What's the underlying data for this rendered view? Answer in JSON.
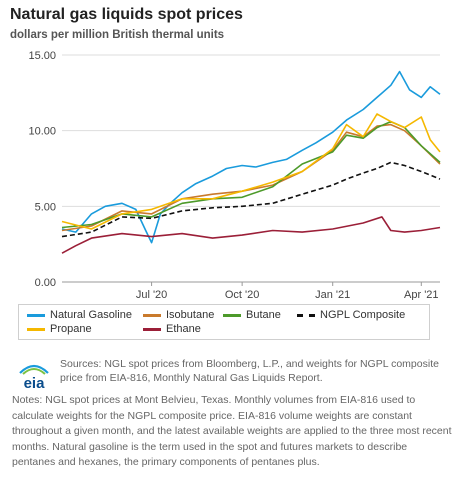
{
  "header": {
    "title": "Natural gas liquids spot prices",
    "subtitle": "dollars per million British thermal units"
  },
  "chart_data": {
    "type": "line",
    "x_range": [
      "2020-04-01",
      "2021-04-20"
    ],
    "ylim": [
      0,
      15
    ],
    "y_ticks": [
      "0.00",
      "5.00",
      "10.00",
      "15.00"
    ],
    "x_ticks": [
      {
        "label": "Jul '20",
        "date": "2020-07-01"
      },
      {
        "label": "Oct '20",
        "date": "2020-10-01"
      },
      {
        "label": "Jan '21",
        "date": "2021-01-01"
      },
      {
        "label": "Apr '21",
        "date": "2021-04-01"
      }
    ],
    "grid": "horizontal",
    "legend_position": "bottom",
    "series": [
      {
        "name": "Natural Gasoline",
        "color": "#1a9bdc",
        "dash": false,
        "points": [
          [
            "2020-04-01",
            3.5
          ],
          [
            "2020-04-15",
            3.3
          ],
          [
            "2020-05-01",
            4.5
          ],
          [
            "2020-05-15",
            5.0
          ],
          [
            "2020-06-01",
            5.2
          ],
          [
            "2020-06-15",
            4.8
          ],
          [
            "2020-06-25",
            3.4
          ],
          [
            "2020-07-01",
            2.6
          ],
          [
            "2020-07-10",
            4.5
          ],
          [
            "2020-07-20",
            5.2
          ],
          [
            "2020-08-01",
            5.9
          ],
          [
            "2020-08-15",
            6.5
          ],
          [
            "2020-09-01",
            7.0
          ],
          [
            "2020-09-15",
            7.5
          ],
          [
            "2020-10-01",
            7.7
          ],
          [
            "2020-10-15",
            7.6
          ],
          [
            "2020-11-01",
            7.9
          ],
          [
            "2020-11-15",
            8.1
          ],
          [
            "2020-12-01",
            8.7
          ],
          [
            "2020-12-15",
            9.2
          ],
          [
            "2021-01-01",
            9.9
          ],
          [
            "2021-01-15",
            10.7
          ],
          [
            "2021-02-01",
            11.4
          ],
          [
            "2021-02-15",
            12.2
          ],
          [
            "2021-03-01",
            13.0
          ],
          [
            "2021-03-10",
            13.9
          ],
          [
            "2021-03-20",
            12.7
          ],
          [
            "2021-04-01",
            12.2
          ],
          [
            "2021-04-10",
            12.9
          ],
          [
            "2021-04-20",
            12.4
          ]
        ]
      },
      {
        "name": "Isobutane",
        "color": "#c97a2c",
        "dash": false,
        "points": [
          [
            "2020-04-01",
            3.4
          ],
          [
            "2020-05-01",
            3.7
          ],
          [
            "2020-06-01",
            4.7
          ],
          [
            "2020-07-01",
            4.5
          ],
          [
            "2020-08-01",
            5.5
          ],
          [
            "2020-09-01",
            5.8
          ],
          [
            "2020-10-01",
            6.0
          ],
          [
            "2020-11-01",
            6.4
          ],
          [
            "2020-12-01",
            7.3
          ],
          [
            "2021-01-01",
            8.7
          ],
          [
            "2021-01-15",
            9.9
          ],
          [
            "2021-02-01",
            9.6
          ],
          [
            "2021-02-15",
            10.3
          ],
          [
            "2021-03-01",
            10.4
          ],
          [
            "2021-03-15",
            10.0
          ],
          [
            "2021-04-01",
            9.0
          ],
          [
            "2021-04-20",
            7.8
          ]
        ]
      },
      {
        "name": "Butane",
        "color": "#4d9a2a",
        "dash": false,
        "points": [
          [
            "2020-04-01",
            3.6
          ],
          [
            "2020-05-01",
            3.8
          ],
          [
            "2020-06-01",
            4.5
          ],
          [
            "2020-07-01",
            4.3
          ],
          [
            "2020-08-01",
            5.2
          ],
          [
            "2020-09-01",
            5.5
          ],
          [
            "2020-10-01",
            5.6
          ],
          [
            "2020-11-01",
            6.3
          ],
          [
            "2020-12-01",
            7.8
          ],
          [
            "2021-01-01",
            8.6
          ],
          [
            "2021-01-15",
            9.7
          ],
          [
            "2021-02-01",
            9.5
          ],
          [
            "2021-02-15",
            10.2
          ],
          [
            "2021-03-01",
            10.6
          ],
          [
            "2021-03-15",
            10.2
          ],
          [
            "2021-04-01",
            9.0
          ],
          [
            "2021-04-20",
            7.9
          ]
        ]
      },
      {
        "name": "NGPL Composite",
        "color": "#111111",
        "dash": true,
        "points": [
          [
            "2020-04-01",
            3.0
          ],
          [
            "2020-05-01",
            3.3
          ],
          [
            "2020-06-01",
            4.3
          ],
          [
            "2020-07-01",
            4.2
          ],
          [
            "2020-08-01",
            4.7
          ],
          [
            "2020-09-01",
            4.9
          ],
          [
            "2020-10-01",
            5.0
          ],
          [
            "2020-11-01",
            5.2
          ],
          [
            "2020-12-01",
            5.8
          ],
          [
            "2021-01-01",
            6.4
          ],
          [
            "2021-01-15",
            6.8
          ],
          [
            "2021-02-01",
            7.2
          ],
          [
            "2021-02-15",
            7.5
          ],
          [
            "2021-03-01",
            7.9
          ],
          [
            "2021-03-15",
            7.7
          ],
          [
            "2021-04-01",
            7.3
          ],
          [
            "2021-04-20",
            6.8
          ]
        ]
      },
      {
        "name": "Propane",
        "color": "#f5b800",
        "dash": false,
        "points": [
          [
            "2020-04-01",
            4.0
          ],
          [
            "2020-05-01",
            3.5
          ],
          [
            "2020-06-01",
            4.5
          ],
          [
            "2020-07-01",
            4.8
          ],
          [
            "2020-08-01",
            5.5
          ],
          [
            "2020-09-01",
            5.5
          ],
          [
            "2020-10-01",
            6.0
          ],
          [
            "2020-11-01",
            6.6
          ],
          [
            "2020-12-01",
            7.3
          ],
          [
            "2021-01-01",
            8.8
          ],
          [
            "2021-01-15",
            10.4
          ],
          [
            "2021-02-01",
            9.6
          ],
          [
            "2021-02-15",
            11.1
          ],
          [
            "2021-03-01",
            10.6
          ],
          [
            "2021-03-15",
            10.2
          ],
          [
            "2021-04-01",
            10.9
          ],
          [
            "2021-04-10",
            9.4
          ],
          [
            "2021-04-20",
            8.6
          ]
        ]
      },
      {
        "name": "Ethane",
        "color": "#9b1f38",
        "dash": false,
        "points": [
          [
            "2020-04-01",
            1.9
          ],
          [
            "2020-04-15",
            2.4
          ],
          [
            "2020-05-01",
            2.9
          ],
          [
            "2020-06-01",
            3.2
          ],
          [
            "2020-07-01",
            3.0
          ],
          [
            "2020-08-01",
            3.2
          ],
          [
            "2020-09-01",
            2.9
          ],
          [
            "2020-10-01",
            3.1
          ],
          [
            "2020-11-01",
            3.4
          ],
          [
            "2020-12-01",
            3.3
          ],
          [
            "2021-01-01",
            3.5
          ],
          [
            "2021-02-01",
            3.9
          ],
          [
            "2021-02-20",
            4.3
          ],
          [
            "2021-03-01",
            3.4
          ],
          [
            "2021-03-15",
            3.3
          ],
          [
            "2021-04-01",
            3.4
          ],
          [
            "2021-04-20",
            3.6
          ]
        ]
      }
    ]
  },
  "legend": {
    "items": [
      {
        "label": "Natural Gasoline",
        "color": "#1a9bdc",
        "dash": false
      },
      {
        "label": "Isobutane",
        "color": "#c97a2c",
        "dash": false
      },
      {
        "label": "Butane",
        "color": "#4d9a2a",
        "dash": false
      },
      {
        "label": "NGPL Composite",
        "color": "#111111",
        "dash": true
      },
      {
        "label": "Propane",
        "color": "#f5b800",
        "dash": false
      },
      {
        "label": "Ethane",
        "color": "#9b1f38",
        "dash": false
      }
    ]
  },
  "footer": {
    "logo_text": "eia",
    "sources": "Sources: NGL spot prices from Bloomberg, L.P., and weights for NGPL composite price from EIA-816, Monthly Natural Gas Liquids Report.",
    "notes": "Notes: NGL spot prices at Mont Belvieu, Texas. Monthly volumes from EIA-816 used to calculate weights for the NGPL composite price. EIA-816 volume weights are constant throughout a given month, and the latest available weights are applied to the three most recent months. Natural gasoline is the term used in the spot and futures markets to describe pentanes and hexanes, the primary components of pentanes plus."
  }
}
